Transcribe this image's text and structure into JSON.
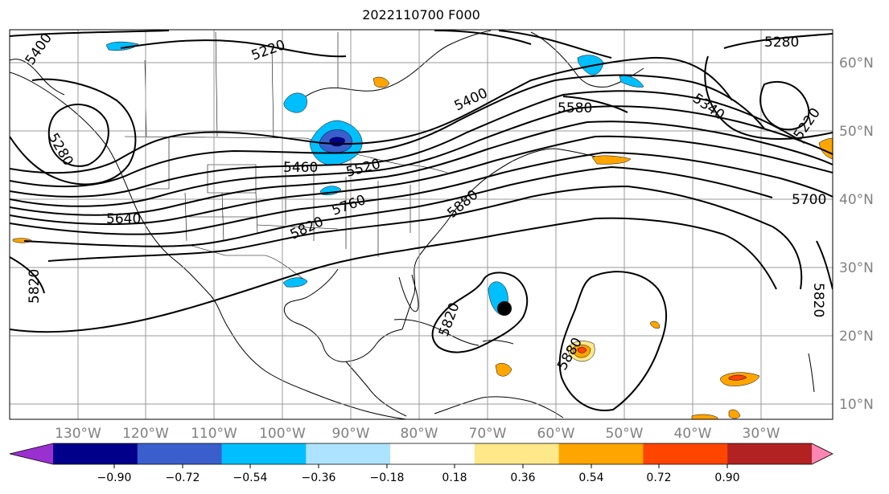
{
  "title": "2022110700 F000",
  "longitude_labels": [
    "130°W",
    "120°W",
    "110°W",
    "100°W",
    "90°W",
    "80°W",
    "70°W",
    "60°W",
    "50°W",
    "40°W",
    "30°W"
  ],
  "latitude_labels": [
    "60°N",
    "50°N",
    "40°N",
    "30°N",
    "20°N",
    "10°N"
  ],
  "contour_labels": [
    "5400",
    "5220",
    "5280",
    "5280",
    "5340",
    "5220",
    "5400",
    "5580",
    "5460",
    "5520",
    "5640",
    "5760",
    "5700",
    "5820",
    "5880",
    "5820",
    "5820",
    "5820",
    "5880"
  ],
  "colorbar": {
    "tick_labels": [
      "−0.90",
      "−0.72",
      "−0.54",
      "−0.36",
      "−0.18",
      "0.18",
      "0.36",
      "0.54",
      "0.72",
      "0.90"
    ],
    "colors": [
      "#9b30d0",
      "#00008b",
      "#3a5fcd",
      "#00bfff",
      "#ade3ff",
      "#ffffff",
      "#ffe88a",
      "#ffa500",
      "#ff4500",
      "#b22222",
      "#ff85b3"
    ]
  }
}
